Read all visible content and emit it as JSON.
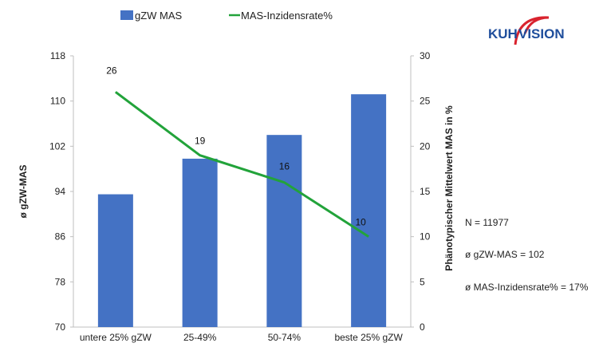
{
  "chart_data": {
    "type": "bar",
    "categories": [
      "untere 25% gZW",
      "25-49%",
      "50-74%",
      "beste 25% gZW"
    ],
    "series": [
      {
        "name": "gZW MAS",
        "kind": "bar",
        "axis": "left",
        "values": [
          93.5,
          99.8,
          104.0,
          111.2
        ],
        "color": "#4472C4"
      },
      {
        "name": "MAS-Inzidensrate%",
        "kind": "line",
        "axis": "right",
        "values": [
          26,
          19,
          16,
          10
        ],
        "labels": [
          "26",
          "19",
          "16",
          "10"
        ],
        "color": "#22A33A"
      }
    ],
    "ylabel": "ø gZW-MAS",
    "ylabel_right": "Phänotypischer Mittelwert  MAS in %",
    "ylim": [
      70,
      118
    ],
    "yticks": [
      70,
      78,
      86,
      94,
      102,
      110,
      118
    ],
    "ylim_right": [
      0,
      30
    ],
    "yticks_right": [
      0,
      5,
      10,
      15,
      20,
      25,
      30
    ],
    "grid": false,
    "legend_placement": "top"
  },
  "stats": {
    "n": "N = 11977",
    "mean_gzw": "ø gZW-MAS  = 102",
    "mean_incidence": "ø MAS-Inzidensrate% = 17%"
  },
  "logo": {
    "text_a": "KUH",
    "text_b": "VISION",
    "color_blue": "#1F4E9C",
    "color_red": "#D9232E"
  }
}
